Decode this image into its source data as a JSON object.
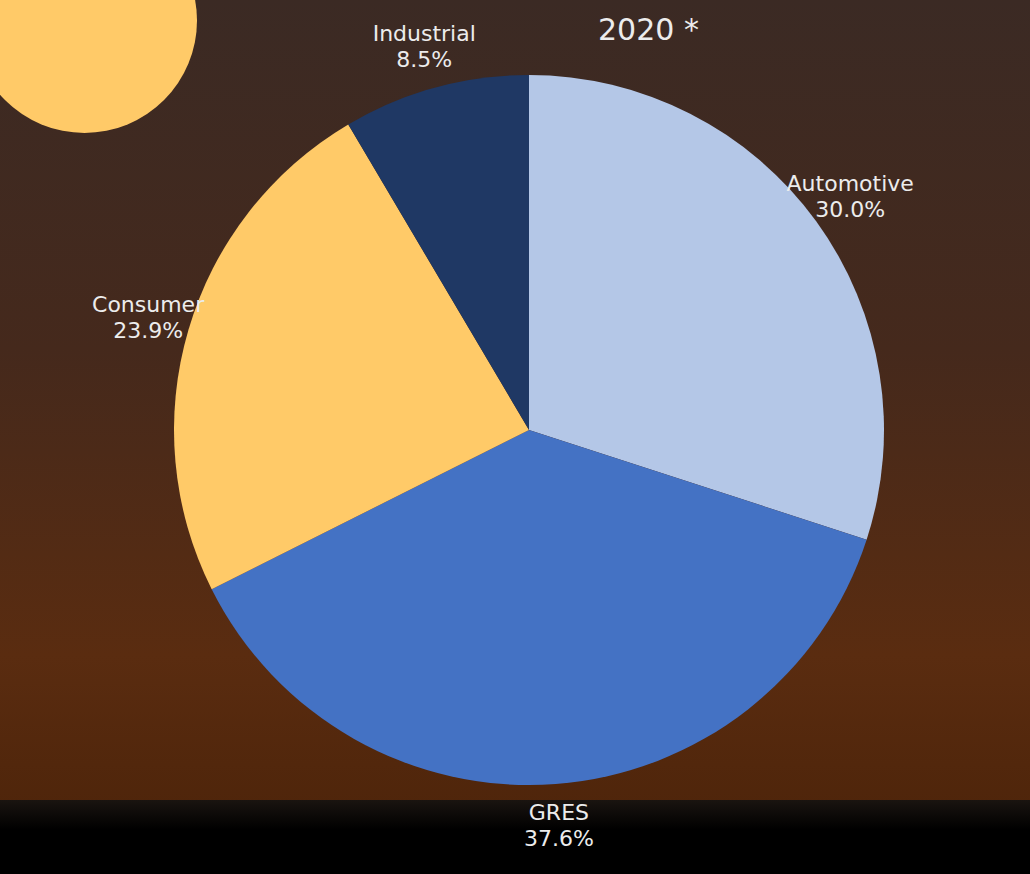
{
  "chart_data": {
    "type": "pie",
    "title": "2020 *",
    "categories": [
      "Automotive",
      "GRES",
      "Consumer",
      "Industrial"
    ],
    "values": [
      30.0,
      37.6,
      23.9,
      8.5
    ],
    "value_labels": [
      "30.0%",
      "37.6%",
      "23.9%",
      "8.5%"
    ],
    "colors": [
      "#b4c7e7",
      "#4472c4",
      "#ffca68",
      "#1f3864"
    ],
    "data_labels": true
  }
}
